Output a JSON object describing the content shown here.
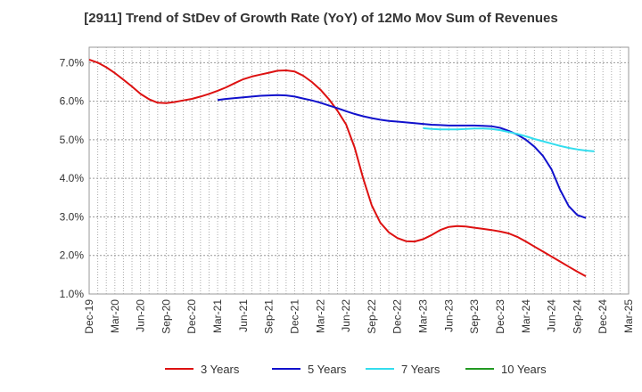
{
  "chart_data": {
    "type": "line",
    "title": "[2911]  Trend of StDev of Growth Rate (YoY) of 12Mo Mov Sum of Revenues",
    "xlabel": "",
    "ylabel": "",
    "x_tick_labels": [
      "Dec-19",
      "Mar-20",
      "Jun-20",
      "Sep-20",
      "Dec-20",
      "Mar-21",
      "Jun-21",
      "Sep-21",
      "Dec-21",
      "Mar-22",
      "Jun-22",
      "Sep-22",
      "Dec-22",
      "Mar-23",
      "Jun-23",
      "Sep-23",
      "Dec-23",
      "Mar-24",
      "Jun-24",
      "Sep-24",
      "Dec-24",
      "Mar-25"
    ],
    "y_tick_labels": [
      "1.0%",
      "2.0%",
      "3.0%",
      "4.0%",
      "5.0%",
      "6.0%",
      "7.0%"
    ],
    "ylim": [
      1.0,
      7.4
    ],
    "grid": true,
    "legend_position": "bottom",
    "series": [
      {
        "name": "3 Years",
        "color": "#dd1111",
        "start_index": 0,
        "values": [
          7.08,
          7.0,
          6.88,
          6.73,
          6.56,
          6.38,
          6.19,
          6.05,
          5.96,
          5.95,
          5.98,
          6.02,
          6.06,
          6.12,
          6.19,
          6.27,
          6.36,
          6.47,
          6.57,
          6.64,
          6.69,
          6.74,
          6.79,
          6.8,
          6.77,
          6.66,
          6.5,
          6.3,
          6.05,
          5.75,
          5.4,
          4.8,
          4.0,
          3.3,
          2.85,
          2.6,
          2.45,
          2.37,
          2.36,
          2.42,
          2.53,
          2.66,
          2.74,
          2.76,
          2.75,
          2.72,
          2.69,
          2.66,
          2.62,
          2.57,
          2.48,
          2.36,
          2.23,
          2.1,
          1.97,
          1.84,
          1.71,
          1.58,
          1.46
        ]
      },
      {
        "name": "5 Years",
        "color": "#1111cc",
        "start_index": 15,
        "values": [
          6.03,
          6.06,
          6.08,
          6.1,
          6.12,
          6.14,
          6.15,
          6.16,
          6.15,
          6.12,
          6.07,
          6.02,
          5.96,
          5.89,
          5.82,
          5.74,
          5.67,
          5.61,
          5.56,
          5.52,
          5.49,
          5.47,
          5.45,
          5.43,
          5.41,
          5.39,
          5.38,
          5.37,
          5.37,
          5.37,
          5.37,
          5.36,
          5.35,
          5.31,
          5.23,
          5.13,
          5.0,
          4.82,
          4.58,
          4.23,
          3.7,
          3.28,
          3.05,
          2.97
        ]
      },
      {
        "name": "7 Years",
        "color": "#33ddee",
        "start_index": 39,
        "values": [
          5.3,
          5.28,
          5.27,
          5.27,
          5.27,
          5.28,
          5.29,
          5.29,
          5.28,
          5.25,
          5.2,
          5.15,
          5.09,
          5.02,
          4.96,
          4.9,
          4.84,
          4.79,
          4.75,
          4.72,
          4.7
        ]
      },
      {
        "name": "10 Years",
        "color": "#229922",
        "start_index": 0,
        "values": []
      }
    ]
  }
}
